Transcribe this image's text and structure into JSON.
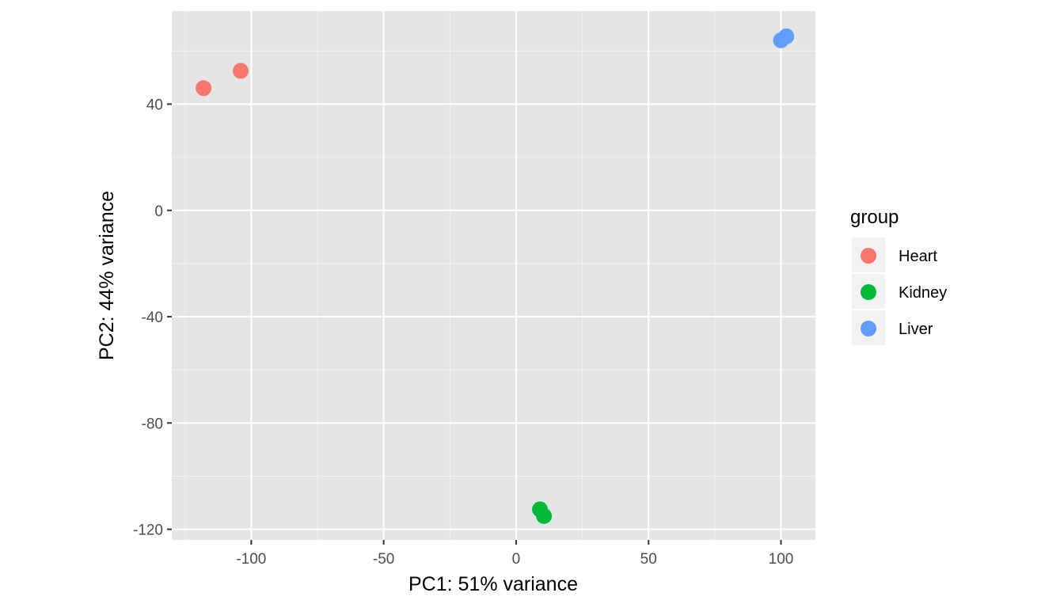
{
  "chart_data": {
    "type": "scatter",
    "xlabel": "PC1: 51% variance",
    "ylabel": "PC2: 44% variance",
    "xlim": [
      -130,
      113
    ],
    "ylim": [
      -124,
      75
    ],
    "x_ticks": [
      -100,
      -50,
      0,
      50,
      100
    ],
    "x_tick_labels": [
      "-100",
      "-50",
      "0",
      "50",
      "100"
    ],
    "y_ticks": [
      -120,
      -80,
      -40,
      0,
      40
    ],
    "y_tick_labels": [
      "-120",
      "-80",
      "-40",
      "0",
      "40"
    ],
    "grid": true,
    "legend": {
      "title": "group",
      "position": "right"
    },
    "series": [
      {
        "name": "Heart",
        "color": "#F8766D",
        "points": [
          {
            "x": -118,
            "y": 46
          },
          {
            "x": -104,
            "y": 52.5
          }
        ]
      },
      {
        "name": "Kidney",
        "color": "#00BA38",
        "points": [
          {
            "x": 9,
            "y": -112.5
          },
          {
            "x": 10.5,
            "y": -115
          }
        ]
      },
      {
        "name": "Liver",
        "color": "#619CFF",
        "points": [
          {
            "x": 100,
            "y": 64
          },
          {
            "x": 102,
            "y": 65.5
          }
        ]
      }
    ]
  }
}
